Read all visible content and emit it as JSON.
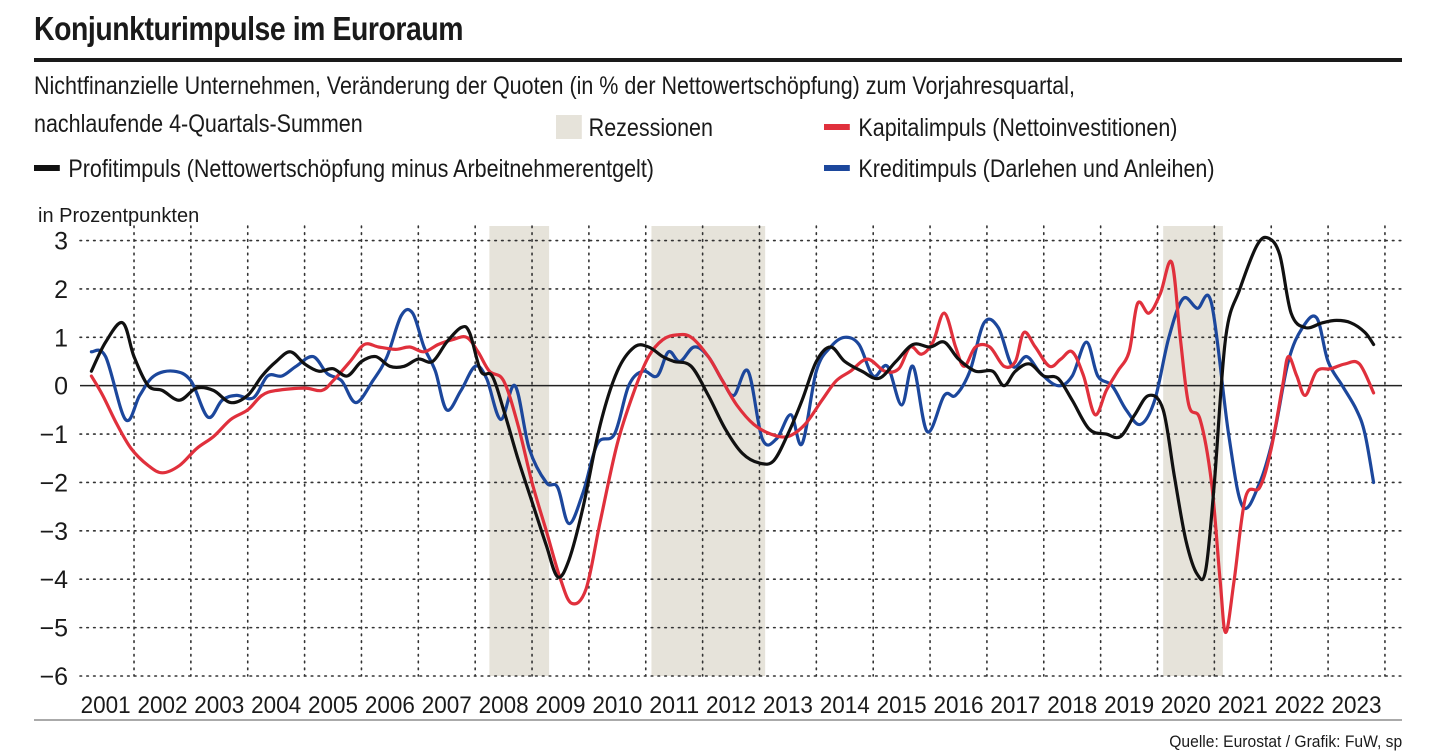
{
  "header": {
    "title": "Konjunkturimpulse im Euroraum",
    "subtitle_line1": "Nichtfinanzielle Unternehmen, Veränderung der Quoten (in % der Nettowertschöpfung) zum Vorjahresquartal,",
    "subtitle_line2": "nachlaufende 4-Quartals-Summen"
  },
  "legend": {
    "recessions": "Rezessionen",
    "kapital": "Kapitalimpuls (Nettoinvestitionen)",
    "profit": "Profitimpuls (Nettowertschöpfung minus Arbeitnehmerentgelt)",
    "kredit": "Kreditimpuls (Darlehen und Anleihen)"
  },
  "source": "Quelle: Eurostat / Grafik: FuW, sp",
  "colors": {
    "profit": "#111111",
    "kapital": "#e0303c",
    "kredit": "#1c479c",
    "recession": "#e6e3da",
    "text": "#1a1a1a"
  },
  "chart_data": {
    "type": "line",
    "title": "Konjunkturimpulse im Euroraum",
    "ylabel": "in Prozentpunkten",
    "xlabel": "",
    "ylim": [
      -6,
      3.3
    ],
    "xlim": [
      2000.55,
      2023.8
    ],
    "yticks": [
      3,
      2,
      1,
      0,
      -1,
      -2,
      -3,
      -4,
      -5,
      -6
    ],
    "ytick_labels": [
      "3",
      "2",
      "1",
      "0",
      "−1",
      "−2",
      "−3",
      "−4",
      "−5",
      "−6"
    ],
    "xtick_labels": [
      "2001",
      "2002",
      "2003",
      "2004",
      "2005",
      "2006",
      "2007",
      "2008",
      "2009",
      "2010",
      "2011",
      "2012",
      "2013",
      "2014",
      "2015",
      "2016",
      "2017",
      "2018",
      "2019",
      "2020",
      "2021",
      "2022",
      "2023"
    ],
    "recessions": [
      [
        2007.75,
        2008.8
      ],
      [
        2010.6,
        2012.6
      ],
      [
        2019.6,
        2020.65
      ]
    ],
    "series": [
      {
        "name": "Profitimpuls (Nettowertschöpfung minus Arbeitnehmerentgelt)",
        "key": "profit",
        "points": [
          [
            2000.75,
            0.3
          ],
          [
            2001.0,
            0.9
          ],
          [
            2001.3,
            1.3
          ],
          [
            2001.5,
            0.6
          ],
          [
            2001.75,
            0.0
          ],
          [
            2002.0,
            -0.1
          ],
          [
            2002.3,
            -0.3
          ],
          [
            2002.6,
            -0.05
          ],
          [
            2002.9,
            -0.1
          ],
          [
            2003.2,
            -0.35
          ],
          [
            2003.5,
            -0.2
          ],
          [
            2003.75,
            0.2
          ],
          [
            2004.0,
            0.5
          ],
          [
            2004.25,
            0.7
          ],
          [
            2004.5,
            0.45
          ],
          [
            2004.75,
            0.3
          ],
          [
            2005.0,
            0.35
          ],
          [
            2005.25,
            0.2
          ],
          [
            2005.5,
            0.5
          ],
          [
            2005.75,
            0.6
          ],
          [
            2006.0,
            0.4
          ],
          [
            2006.25,
            0.4
          ],
          [
            2006.5,
            0.55
          ],
          [
            2006.75,
            0.5
          ],
          [
            2007.0,
            0.9
          ],
          [
            2007.25,
            1.2
          ],
          [
            2007.4,
            1.1
          ],
          [
            2007.6,
            0.3
          ],
          [
            2007.8,
            0.2
          ],
          [
            2008.0,
            -0.5
          ],
          [
            2008.25,
            -1.5
          ],
          [
            2008.5,
            -2.4
          ],
          [
            2008.75,
            -3.3
          ],
          [
            2008.95,
            -3.95
          ],
          [
            2009.15,
            -3.6
          ],
          [
            2009.4,
            -2.5
          ],
          [
            2009.7,
            -0.8
          ],
          [
            2010.0,
            0.3
          ],
          [
            2010.3,
            0.8
          ],
          [
            2010.55,
            0.8
          ],
          [
            2010.8,
            0.6
          ],
          [
            2011.0,
            0.5
          ],
          [
            2011.3,
            0.4
          ],
          [
            2011.6,
            -0.2
          ],
          [
            2011.9,
            -0.9
          ],
          [
            2012.2,
            -1.4
          ],
          [
            2012.5,
            -1.6
          ],
          [
            2012.75,
            -1.55
          ],
          [
            2013.0,
            -1.0
          ],
          [
            2013.25,
            -0.3
          ],
          [
            2013.5,
            0.5
          ],
          [
            2013.75,
            0.8
          ],
          [
            2014.0,
            0.5
          ],
          [
            2014.3,
            0.3
          ],
          [
            2014.6,
            0.15
          ],
          [
            2014.9,
            0.5
          ],
          [
            2015.2,
            0.85
          ],
          [
            2015.5,
            0.8
          ],
          [
            2015.75,
            0.9
          ],
          [
            2016.0,
            0.55
          ],
          [
            2016.3,
            0.3
          ],
          [
            2016.6,
            0.3
          ],
          [
            2016.8,
            0.0
          ],
          [
            2017.0,
            0.3
          ],
          [
            2017.25,
            0.45
          ],
          [
            2017.5,
            0.2
          ],
          [
            2017.75,
            0.15
          ],
          [
            2018.0,
            -0.3
          ],
          [
            2018.3,
            -0.9
          ],
          [
            2018.6,
            -1.0
          ],
          [
            2018.85,
            -1.05
          ],
          [
            2019.1,
            -0.6
          ],
          [
            2019.35,
            -0.2
          ],
          [
            2019.6,
            -0.5
          ],
          [
            2019.8,
            -1.9
          ],
          [
            2020.0,
            -3.2
          ],
          [
            2020.2,
            -3.9
          ],
          [
            2020.35,
            -3.8
          ],
          [
            2020.5,
            -2.0
          ],
          [
            2020.7,
            1.0
          ],
          [
            2020.95,
            2.0
          ],
          [
            2021.25,
            2.9
          ],
          [
            2021.45,
            3.05
          ],
          [
            2021.65,
            2.7
          ],
          [
            2021.85,
            1.5
          ],
          [
            2022.1,
            1.2
          ],
          [
            2022.4,
            1.3
          ],
          [
            2022.65,
            1.35
          ],
          [
            2022.9,
            1.3
          ],
          [
            2023.15,
            1.1
          ],
          [
            2023.3,
            0.85
          ]
        ]
      },
      {
        "name": "Kapitalimpuls (Nettoinvestitionen)",
        "key": "kapital",
        "points": [
          [
            2000.75,
            0.2
          ],
          [
            2000.95,
            -0.2
          ],
          [
            2001.2,
            -0.8
          ],
          [
            2001.45,
            -1.3
          ],
          [
            2001.75,
            -1.65
          ],
          [
            2002.0,
            -1.8
          ],
          [
            2002.3,
            -1.65
          ],
          [
            2002.6,
            -1.3
          ],
          [
            2002.9,
            -1.05
          ],
          [
            2003.2,
            -0.7
          ],
          [
            2003.5,
            -0.5
          ],
          [
            2003.75,
            -0.2
          ],
          [
            2004.0,
            -0.1
          ],
          [
            2004.5,
            -0.05
          ],
          [
            2004.8,
            -0.1
          ],
          [
            2005.0,
            0.1
          ],
          [
            2005.3,
            0.5
          ],
          [
            2005.55,
            0.85
          ],
          [
            2005.8,
            0.8
          ],
          [
            2006.1,
            0.75
          ],
          [
            2006.35,
            0.8
          ],
          [
            2006.6,
            0.7
          ],
          [
            2006.85,
            0.85
          ],
          [
            2007.1,
            0.95
          ],
          [
            2007.35,
            1.0
          ],
          [
            2007.55,
            0.7
          ],
          [
            2007.75,
            0.3
          ],
          [
            2008.0,
            0.1
          ],
          [
            2008.25,
            -0.8
          ],
          [
            2008.5,
            -2.0
          ],
          [
            2008.75,
            -3.0
          ],
          [
            2009.0,
            -4.0
          ],
          [
            2009.2,
            -4.5
          ],
          [
            2009.45,
            -4.2
          ],
          [
            2009.7,
            -2.8
          ],
          [
            2010.0,
            -1.2
          ],
          [
            2010.3,
            -0.1
          ],
          [
            2010.55,
            0.6
          ],
          [
            2010.8,
            0.95
          ],
          [
            2011.05,
            1.05
          ],
          [
            2011.3,
            1.0
          ],
          [
            2011.6,
            0.6
          ],
          [
            2011.85,
            0.1
          ],
          [
            2012.1,
            -0.4
          ],
          [
            2012.4,
            -0.8
          ],
          [
            2012.7,
            -1.0
          ],
          [
            2013.0,
            -1.05
          ],
          [
            2013.3,
            -0.8
          ],
          [
            2013.6,
            -0.3
          ],
          [
            2013.85,
            0.1
          ],
          [
            2014.1,
            0.3
          ],
          [
            2014.4,
            0.55
          ],
          [
            2014.7,
            0.3
          ],
          [
            2014.95,
            0.35
          ],
          [
            2015.15,
            0.8
          ],
          [
            2015.35,
            0.65
          ],
          [
            2015.55,
            0.9
          ],
          [
            2015.75,
            1.5
          ],
          [
            2015.95,
            0.8
          ],
          [
            2016.1,
            0.4
          ],
          [
            2016.3,
            0.8
          ],
          [
            2016.55,
            0.8
          ],
          [
            2016.8,
            0.4
          ],
          [
            2017.0,
            0.5
          ],
          [
            2017.15,
            1.1
          ],
          [
            2017.35,
            0.8
          ],
          [
            2017.6,
            0.4
          ],
          [
            2017.8,
            0.55
          ],
          [
            2018.0,
            0.7
          ],
          [
            2018.2,
            0.2
          ],
          [
            2018.4,
            -0.6
          ],
          [
            2018.6,
            -0.1
          ],
          [
            2018.8,
            0.3
          ],
          [
            2019.0,
            0.7
          ],
          [
            2019.15,
            1.7
          ],
          [
            2019.35,
            1.5
          ],
          [
            2019.55,
            1.9
          ],
          [
            2019.75,
            2.55
          ],
          [
            2019.9,
            1.0
          ],
          [
            2020.05,
            -0.4
          ],
          [
            2020.25,
            -0.7
          ],
          [
            2020.45,
            -2.0
          ],
          [
            2020.6,
            -4.0
          ],
          [
            2020.7,
            -5.1
          ],
          [
            2020.85,
            -4.0
          ],
          [
            2021.05,
            -2.3
          ],
          [
            2021.3,
            -2.1
          ],
          [
            2021.5,
            -1.3
          ],
          [
            2021.7,
            0.0
          ],
          [
            2021.8,
            0.6
          ],
          [
            2021.95,
            0.2
          ],
          [
            2022.1,
            -0.2
          ],
          [
            2022.3,
            0.3
          ],
          [
            2022.55,
            0.35
          ],
          [
            2022.8,
            0.45
          ],
          [
            2023.05,
            0.45
          ],
          [
            2023.3,
            -0.15
          ]
        ]
      },
      {
        "name": "Kreditimpuls (Darlehen und Anleihen)",
        "key": "kredit",
        "points": [
          [
            2000.75,
            0.7
          ],
          [
            2001.0,
            0.6
          ],
          [
            2001.35,
            -0.7
          ],
          [
            2001.6,
            -0.2
          ],
          [
            2001.85,
            0.2
          ],
          [
            2002.2,
            0.3
          ],
          [
            2002.5,
            0.1
          ],
          [
            2002.8,
            -0.65
          ],
          [
            2003.05,
            -0.3
          ],
          [
            2003.3,
            -0.2
          ],
          [
            2003.6,
            -0.25
          ],
          [
            2003.85,
            0.2
          ],
          [
            2004.1,
            0.2
          ],
          [
            2004.35,
            0.4
          ],
          [
            2004.65,
            0.6
          ],
          [
            2004.9,
            0.25
          ],
          [
            2005.15,
            0.1
          ],
          [
            2005.4,
            -0.35
          ],
          [
            2005.7,
            0.1
          ],
          [
            2005.95,
            0.6
          ],
          [
            2006.2,
            1.45
          ],
          [
            2006.4,
            1.5
          ],
          [
            2006.6,
            0.8
          ],
          [
            2006.8,
            0.3
          ],
          [
            2007.0,
            -0.5
          ],
          [
            2007.25,
            -0.1
          ],
          [
            2007.5,
            0.4
          ],
          [
            2007.7,
            0.15
          ],
          [
            2007.95,
            -0.7
          ],
          [
            2008.2,
            0.0
          ],
          [
            2008.45,
            -1.3
          ],
          [
            2008.75,
            -2.0
          ],
          [
            2008.95,
            -2.1
          ],
          [
            2009.15,
            -2.85
          ],
          [
            2009.4,
            -2.2
          ],
          [
            2009.65,
            -1.2
          ],
          [
            2009.95,
            -1.0
          ],
          [
            2010.2,
            0.0
          ],
          [
            2010.45,
            0.3
          ],
          [
            2010.7,
            0.2
          ],
          [
            2010.9,
            0.7
          ],
          [
            2011.1,
            0.5
          ],
          [
            2011.35,
            0.8
          ],
          [
            2011.6,
            0.6
          ],
          [
            2011.85,
            0.1
          ],
          [
            2012.05,
            -0.2
          ],
          [
            2012.3,
            0.3
          ],
          [
            2012.55,
            -1.1
          ],
          [
            2012.8,
            -1.1
          ],
          [
            2013.05,
            -0.6
          ],
          [
            2013.25,
            -1.2
          ],
          [
            2013.5,
            0.3
          ],
          [
            2013.75,
            0.8
          ],
          [
            2014.0,
            1.0
          ],
          [
            2014.25,
            0.85
          ],
          [
            2014.5,
            0.2
          ],
          [
            2014.75,
            0.4
          ],
          [
            2015.0,
            -0.4
          ],
          [
            2015.2,
            0.4
          ],
          [
            2015.45,
            -0.95
          ],
          [
            2015.75,
            -0.2
          ],
          [
            2015.95,
            -0.2
          ],
          [
            2016.2,
            0.3
          ],
          [
            2016.45,
            1.3
          ],
          [
            2016.7,
            1.2
          ],
          [
            2016.95,
            0.4
          ],
          [
            2017.2,
            0.6
          ],
          [
            2017.45,
            0.25
          ],
          [
            2017.75,
            0.0
          ],
          [
            2018.0,
            0.2
          ],
          [
            2018.25,
            0.9
          ],
          [
            2018.45,
            0.2
          ],
          [
            2018.7,
            0.0
          ],
          [
            2018.95,
            -0.5
          ],
          [
            2019.2,
            -0.8
          ],
          [
            2019.45,
            -0.3
          ],
          [
            2019.7,
            1.0
          ],
          [
            2019.95,
            1.8
          ],
          [
            2020.2,
            1.6
          ],
          [
            2020.45,
            1.7
          ],
          [
            2020.75,
            -1.0
          ],
          [
            2021.0,
            -2.5
          ],
          [
            2021.3,
            -2.0
          ],
          [
            2021.55,
            -1.0
          ],
          [
            2021.8,
            0.5
          ],
          [
            2022.05,
            1.2
          ],
          [
            2022.3,
            1.4
          ],
          [
            2022.5,
            0.5
          ],
          [
            2022.75,
            0.0
          ],
          [
            2023.0,
            -0.5
          ],
          [
            2023.15,
            -1.0
          ],
          [
            2023.3,
            -2.0
          ]
        ]
      }
    ]
  }
}
